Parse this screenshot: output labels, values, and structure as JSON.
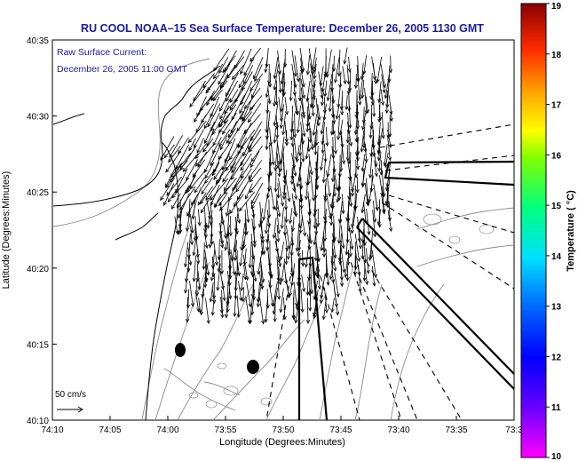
{
  "title": "RU COOL   NOAA–15  Sea Surface Temperature:  December 26, 2005 1130 GMT",
  "legend": {
    "line1": "Raw Surface Current:",
    "line2": "December 26, 2005 11:00 GMT"
  },
  "scale_label": "50 cm/s",
  "colorbar": {
    "label": "Temperature ( °C)",
    "min": 10,
    "max": 19,
    "ticks": [
      "19",
      "18",
      "17",
      "16",
      "15",
      "14",
      "13",
      "12",
      "11",
      "10"
    ]
  },
  "chart_data": {
    "type": "vector-field map",
    "title": "RU COOL   NOAA–15  Sea Surface Temperature:  December 26, 2005 1130 GMT",
    "xlabel": "Longitude (Degrees:Minutes)",
    "ylabel": "Latitude (Degrees:Minutes)",
    "x_ticks": [
      "74:10",
      "74:05",
      "74:00",
      "73:55",
      "73:50",
      "73:45",
      "73:40",
      "73:35",
      "73:3"
    ],
    "y_ticks": [
      "40:35",
      "40:30",
      "40:25",
      "40:20",
      "40:15",
      "40:10"
    ],
    "xlim_minutes_west": [
      4450,
      4410
    ],
    "ylim_minutes_north": [
      2410,
      2435
    ],
    "vector_scale": "50 cm/s",
    "vector_direction": "predominantly southward (down-coast), some southwestward near coast",
    "colorbar_range_C": [
      10,
      19
    ]
  }
}
